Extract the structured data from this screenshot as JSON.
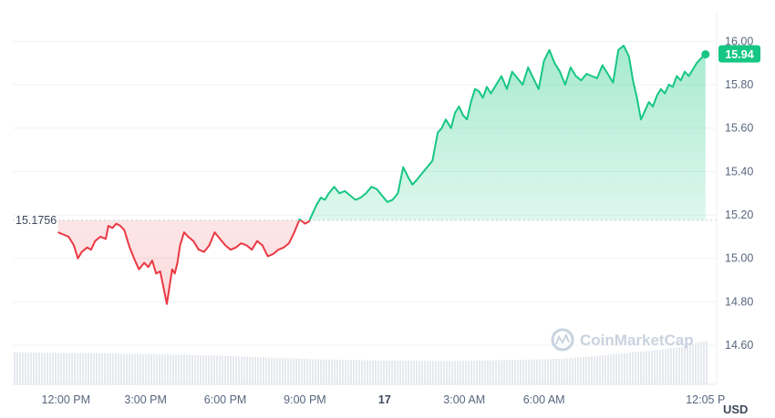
{
  "chart_data": {
    "type": "line",
    "currency": "USD",
    "reference_value": 15.1756,
    "reference_label": "15.1756",
    "current_value": 15.94,
    "current_label": "15.94",
    "ylim": [
      14.42,
      16.14
    ],
    "yticks": [
      "16.00",
      "15.80",
      "15.60",
      "15.40",
      "15.20",
      "15.00",
      "14.80",
      "14.60"
    ],
    "ytick_values": [
      16.0,
      15.8,
      15.6,
      15.4,
      15.2,
      15.0,
      14.8,
      14.6
    ],
    "xticks": [
      {
        "label": "12:00 PM",
        "hour": 2,
        "bold": false
      },
      {
        "label": "3:00 PM",
        "hour": 5,
        "bold": false
      },
      {
        "label": "6:00 PM",
        "hour": 8,
        "bold": false
      },
      {
        "label": "9:00 PM",
        "hour": 11,
        "bold": false
      },
      {
        "label": "17",
        "hour": 14,
        "bold": true
      },
      {
        "label": "3:00 AM",
        "hour": 17,
        "bold": false
      },
      {
        "label": "6:00 AM",
        "hour": 20,
        "bold": false
      },
      {
        "label": "12:05 P",
        "hour": 26.08,
        "bold": false
      }
    ],
    "x_range_hours": [
      0,
      26.5
    ],
    "line_up_color": "#16c784",
    "line_down_color": "#ea3943",
    "series": [
      {
        "hours": [
          1.7,
          1.9,
          2.1,
          2.3,
          2.45,
          2.6,
          2.8,
          2.95,
          3.1,
          3.3,
          3.5,
          3.6,
          3.75,
          3.9,
          4.05,
          4.2,
          4.4,
          4.6,
          4.75,
          4.95,
          5.1,
          5.25,
          5.4,
          5.55,
          5.7,
          5.8,
          5.9,
          6.0,
          6.1,
          6.2,
          6.3,
          6.45,
          6.6,
          6.8,
          7.0,
          7.2,
          7.4,
          7.6,
          7.8,
          8.0,
          8.2,
          8.4,
          8.6,
          8.8,
          9.0,
          9.2,
          9.4,
          9.6,
          9.8,
          10.0,
          10.2,
          10.4,
          10.6,
          10.8,
          11.0,
          11.15,
          11.3,
          11.45,
          11.6,
          11.75,
          11.9,
          12.1,
          12.3,
          12.5,
          12.7,
          12.9,
          13.1,
          13.3,
          13.5,
          13.7,
          13.9,
          14.1,
          14.3,
          14.5,
          14.7,
          14.9,
          15.05,
          15.2,
          15.4,
          15.6,
          15.8,
          16.0,
          16.15,
          16.3,
          16.5,
          16.65,
          16.8,
          16.95,
          17.1,
          17.25,
          17.4,
          17.55,
          17.7,
          17.85,
          18.0,
          18.2,
          18.4,
          18.6,
          18.8,
          19.0,
          19.2,
          19.4,
          19.6,
          19.8,
          20.0,
          20.2,
          20.4,
          20.6,
          20.8,
          21.0,
          21.2,
          21.4,
          21.6,
          21.8,
          22.0,
          22.2,
          22.4,
          22.6,
          22.8,
          23.0,
          23.2,
          23.35,
          23.5,
          23.65,
          23.8,
          23.95,
          24.1,
          24.25,
          24.4,
          24.55,
          24.7,
          24.85,
          25.0,
          25.15,
          25.3,
          25.45,
          25.6,
          25.75,
          25.9,
          26.08
        ],
        "values": [
          15.12,
          15.11,
          15.1,
          15.06,
          15.0,
          15.03,
          15.05,
          15.04,
          15.08,
          15.1,
          15.09,
          15.15,
          15.14,
          15.16,
          15.15,
          15.13,
          15.05,
          14.99,
          14.95,
          14.98,
          14.96,
          14.99,
          14.93,
          14.94,
          14.85,
          14.79,
          14.87,
          14.95,
          14.93,
          14.98,
          15.06,
          15.12,
          15.1,
          15.08,
          15.04,
          15.03,
          15.06,
          15.12,
          15.09,
          15.06,
          15.04,
          15.05,
          15.07,
          15.06,
          15.04,
          15.08,
          15.06,
          15.01,
          15.02,
          15.04,
          15.05,
          15.07,
          15.12,
          15.18,
          15.16,
          15.17,
          15.21,
          15.25,
          15.28,
          15.27,
          15.3,
          15.33,
          15.3,
          15.31,
          15.29,
          15.27,
          15.28,
          15.3,
          15.33,
          15.32,
          15.29,
          15.26,
          15.27,
          15.3,
          15.42,
          15.37,
          15.34,
          15.36,
          15.39,
          15.42,
          15.45,
          15.58,
          15.6,
          15.64,
          15.6,
          15.67,
          15.7,
          15.66,
          15.64,
          15.72,
          15.78,
          15.77,
          15.74,
          15.79,
          15.76,
          15.8,
          15.84,
          15.78,
          15.86,
          15.83,
          15.8,
          15.88,
          15.83,
          15.78,
          15.91,
          15.96,
          15.9,
          15.86,
          15.8,
          15.88,
          15.84,
          15.82,
          15.85,
          15.84,
          15.83,
          15.89,
          15.85,
          15.81,
          15.96,
          15.98,
          15.93,
          15.82,
          15.74,
          15.64,
          15.68,
          15.72,
          15.7,
          15.75,
          15.78,
          15.76,
          15.8,
          15.79,
          15.84,
          15.82,
          15.86,
          15.84,
          15.87,
          15.9,
          15.92,
          15.94
        ]
      }
    ],
    "volume_bars": [
      0.62,
      0.61,
      0.6,
      0.6,
      0.59,
      0.58,
      0.57,
      0.56,
      0.54,
      0.52,
      0.5,
      0.48,
      0.47,
      0.46,
      0.46,
      0.45,
      0.45,
      0.46,
      0.47,
      0.48,
      0.5,
      0.55,
      0.6,
      0.65,
      0.72,
      0.85
    ],
    "watermark": "CoinMarketCap"
  }
}
